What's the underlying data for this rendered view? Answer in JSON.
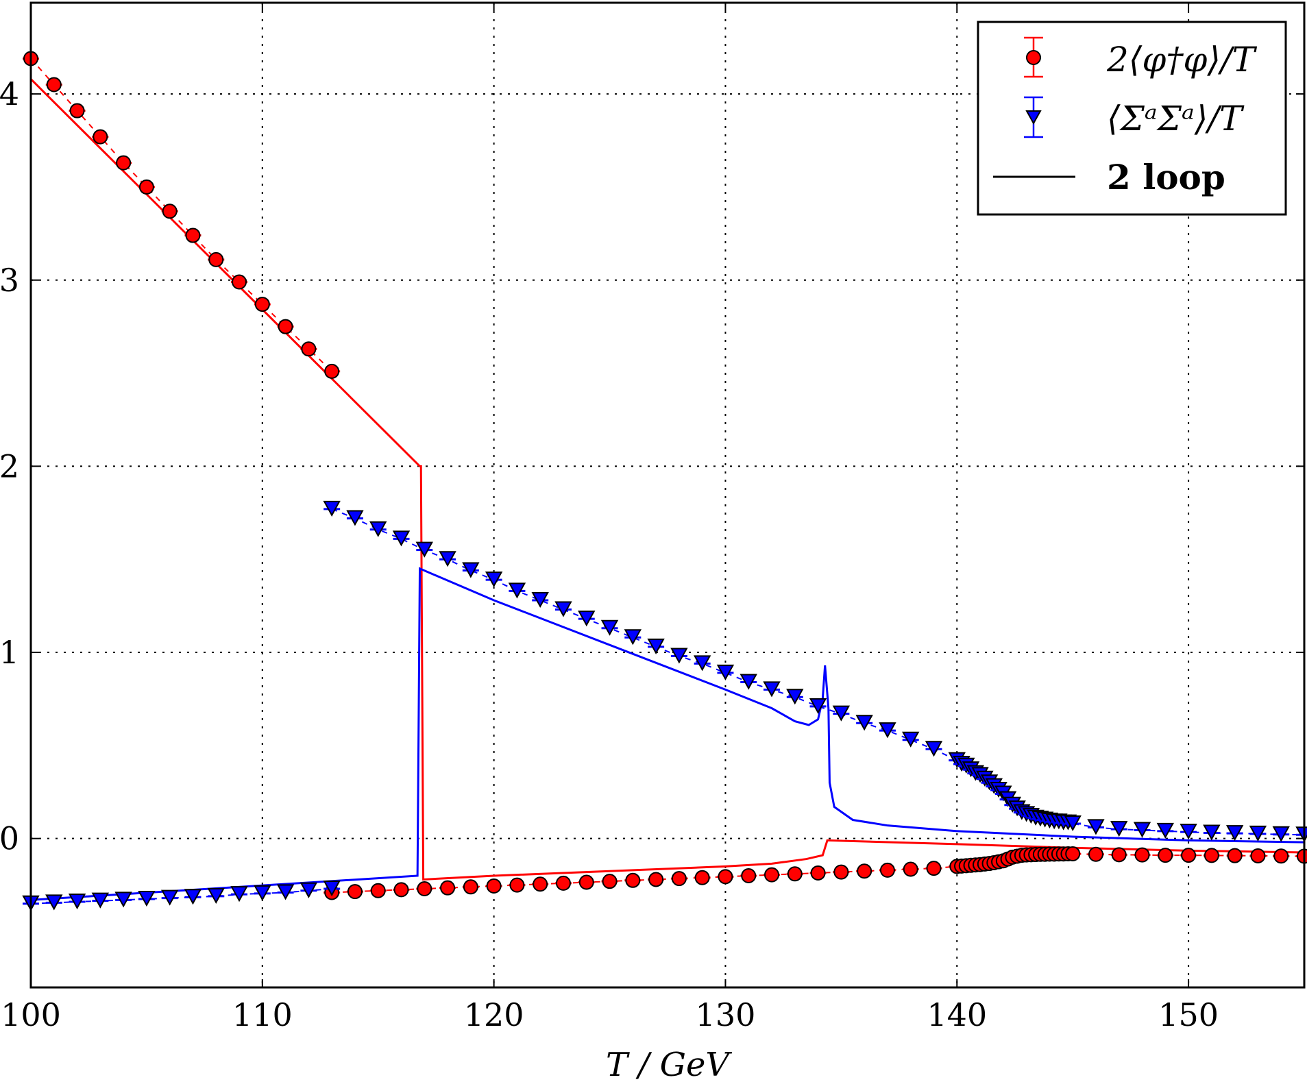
{
  "chart_data": {
    "type": "scatter",
    "title": "",
    "xlabel": "T / GeV",
    "ylabel": "",
    "xlim": [
      100,
      155
    ],
    "ylim": [
      -0.8,
      4.49
    ],
    "xticks": [
      100,
      110,
      120,
      130,
      140,
      150
    ],
    "xtick_labels": [
      "100",
      "110",
      "120",
      "130",
      "140",
      "150"
    ],
    "yticks": [
      0,
      1,
      2,
      3,
      4
    ],
    "ytick_labels": [
      "0",
      "1",
      "2",
      "3",
      "4"
    ],
    "grid": true,
    "legend_position": "top-right",
    "colors": {
      "phi": "#ff0000",
      "sigma": "#0000ff",
      "loop": "#000000"
    },
    "legend": [
      "2⟨φ†φ⟩/T",
      "⟨ΣᵃΣᵃ⟩/T",
      "2 loop"
    ],
    "series": [
      {
        "name": "2⟨φ†φ⟩/T",
        "marker": "circle",
        "color": "#ff0000",
        "branches": [
          {
            "x": [
              100,
              101,
              102,
              103,
              104,
              105,
              106,
              107,
              108,
              109,
              110,
              111,
              112,
              113
            ],
            "y": [
              4.19,
              4.05,
              3.91,
              3.77,
              3.63,
              3.5,
              3.37,
              3.24,
              3.11,
              2.99,
              2.87,
              2.75,
              2.63,
              2.51
            ]
          },
          {
            "x": [
              113,
              114,
              115,
              116,
              117,
              118,
              119,
              120,
              121,
              122,
              123,
              124,
              125,
              126,
              127,
              128,
              129,
              130,
              131,
              132,
              133,
              134,
              135,
              136,
              137,
              138,
              139,
              140,
              140.2,
              140.4,
              140.6,
              140.8,
              141,
              141.2,
              141.4,
              141.6,
              141.8,
              142,
              142.2,
              142.4,
              142.6,
              142.8,
              143,
              143.2,
              143.4,
              143.6,
              143.8,
              144,
              144.2,
              144.4,
              144.6,
              144.8,
              145,
              146,
              147,
              148,
              149,
              150,
              151,
              152,
              153,
              154,
              155
            ],
            "y": [
              -0.29,
              -0.285,
              -0.28,
              -0.275,
              -0.27,
              -0.265,
              -0.26,
              -0.255,
              -0.25,
              -0.245,
              -0.24,
              -0.235,
              -0.23,
              -0.225,
              -0.22,
              -0.215,
              -0.21,
              -0.205,
              -0.2,
              -0.195,
              -0.19,
              -0.185,
              -0.18,
              -0.175,
              -0.17,
              -0.165,
              -0.16,
              -0.15,
              -0.148,
              -0.146,
              -0.144,
              -0.142,
              -0.14,
              -0.137,
              -0.134,
              -0.13,
              -0.125,
              -0.12,
              -0.11,
              -0.1,
              -0.095,
              -0.09,
              -0.088,
              -0.087,
              -0.086,
              -0.085,
              -0.085,
              -0.084,
              -0.084,
              -0.083,
              -0.083,
              -0.082,
              -0.082,
              -0.085,
              -0.087,
              -0.088,
              -0.09,
              -0.09,
              -0.091,
              -0.092,
              -0.093,
              -0.094,
              -0.095
            ]
          }
        ]
      },
      {
        "name": "⟨ΣᵃΣᵃ⟩/T",
        "marker": "triangle-down",
        "color": "#0000ff",
        "branches": [
          {
            "x": [
              100,
              101,
              102,
              103,
              104,
              105,
              106,
              107,
              108,
              109,
              110,
              111,
              112,
              113
            ],
            "y": [
              -0.35,
              -0.345,
              -0.34,
              -0.335,
              -0.33,
              -0.325,
              -0.32,
              -0.315,
              -0.31,
              -0.3,
              -0.295,
              -0.29,
              -0.28,
              -0.27
            ]
          },
          {
            "x": [
              113,
              114,
              115,
              116,
              117,
              118,
              119,
              120,
              121,
              122,
              123,
              124,
              125,
              126,
              127,
              128,
              129,
              130,
              131,
              132,
              133,
              134,
              135,
              136,
              137,
              138,
              139,
              140,
              140.2,
              140.4,
              140.6,
              140.8,
              141,
              141.2,
              141.4,
              141.6,
              141.8,
              142,
              142.2,
              142.4,
              142.6,
              142.8,
              143,
              143.2,
              143.4,
              143.6,
              143.8,
              144,
              144.2,
              144.4,
              144.6,
              144.8,
              145,
              146,
              147,
              148,
              149,
              150,
              151,
              152,
              153,
              154,
              155
            ],
            "y": [
              1.77,
              1.72,
              1.66,
              1.61,
              1.55,
              1.5,
              1.44,
              1.39,
              1.33,
              1.28,
              1.23,
              1.18,
              1.13,
              1.08,
              1.03,
              0.98,
              0.94,
              0.89,
              0.84,
              0.8,
              0.76,
              0.71,
              0.67,
              0.62,
              0.58,
              0.53,
              0.48,
              0.42,
              0.4,
              0.39,
              0.37,
              0.35,
              0.34,
              0.32,
              0.3,
              0.28,
              0.26,
              0.24,
              0.21,
              0.18,
              0.16,
              0.14,
              0.13,
              0.12,
              0.11,
              0.105,
              0.1,
              0.095,
              0.09,
              0.09,
              0.085,
              0.085,
              0.08,
              0.06,
              0.05,
              0.045,
              0.04,
              0.035,
              0.03,
              0.028,
              0.025,
              0.022,
              0.02
            ]
          }
        ]
      }
    ],
    "lines": [
      {
        "name": "2 loop",
        "color": "#ff0000",
        "x": [
          100,
          116.8,
          116.85,
          116.95,
          120,
          125,
          130,
          132,
          133.5,
          134.2,
          134.4,
          140,
          145,
          150,
          155
        ],
        "y": [
          4.08,
          2.0,
          2.0,
          -0.22,
          -0.2,
          -0.175,
          -0.15,
          -0.135,
          -0.11,
          -0.09,
          -0.01,
          -0.03,
          -0.05,
          -0.065,
          -0.075
        ]
      },
      {
        "name": "2 loop",
        "color": "#0000ff",
        "x": [
          100,
          116.7,
          116.8,
          120,
          125,
          130,
          132,
          133,
          133.6,
          134,
          134.2,
          134.3,
          134.45,
          134.5,
          134.7,
          135.5,
          137,
          140,
          145,
          150,
          155
        ],
        "y": [
          -0.33,
          -0.2,
          1.45,
          1.28,
          1.04,
          0.8,
          0.7,
          0.63,
          0.61,
          0.64,
          0.75,
          0.93,
          0.7,
          0.3,
          0.17,
          0.1,
          0.07,
          0.04,
          0.01,
          -0.01,
          -0.02
        ]
      }
    ]
  }
}
